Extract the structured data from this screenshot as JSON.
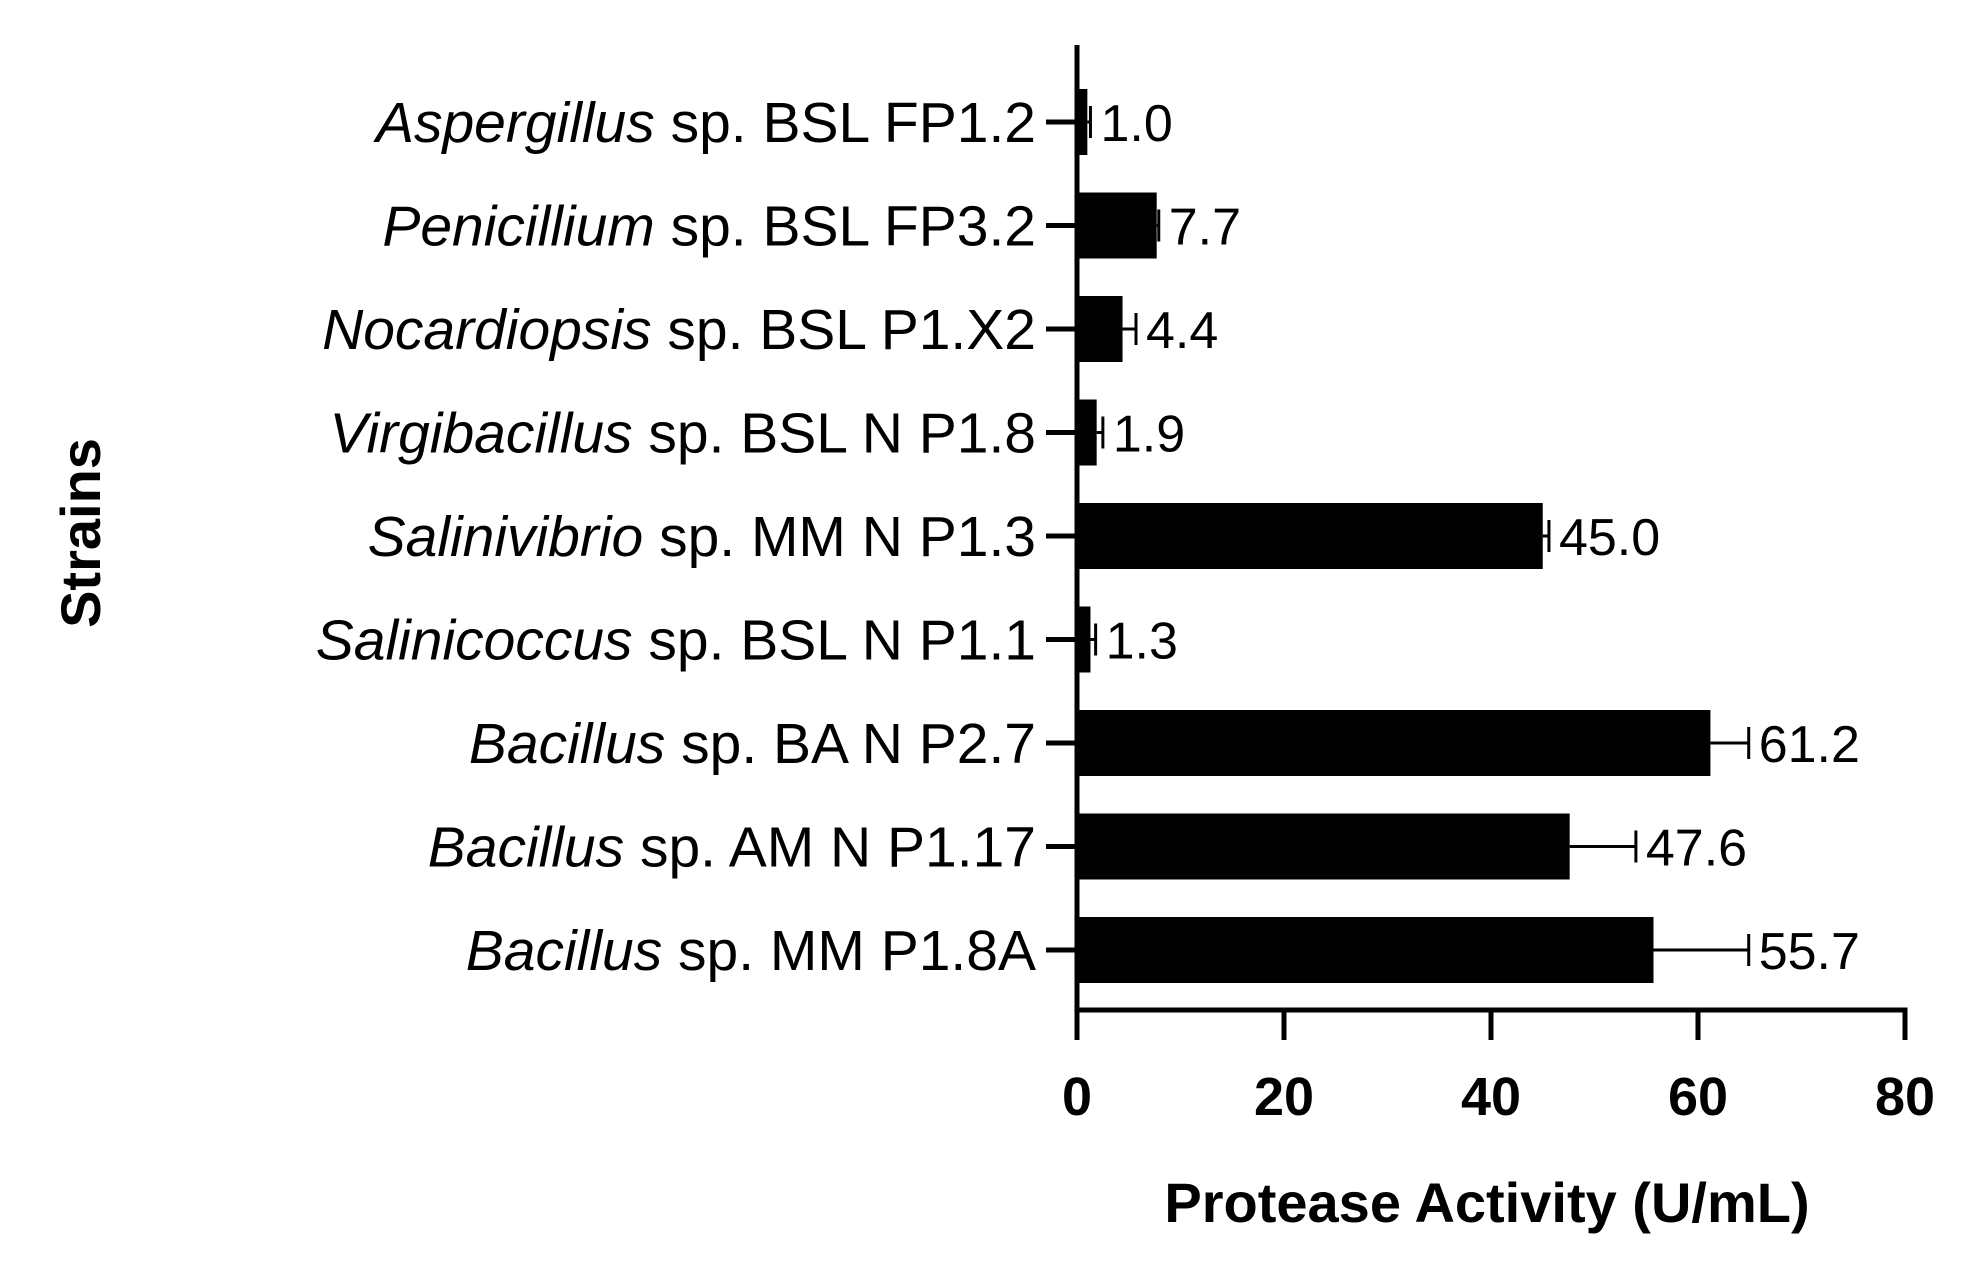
{
  "chart_data": {
    "type": "bar",
    "orientation": "horizontal",
    "title": "",
    "xlabel": "Protease Activity (U/mL)",
    "ylabel": "Strains",
    "xlim": [
      0,
      80
    ],
    "xticks": [
      0,
      20,
      40,
      60,
      80
    ],
    "grid": false,
    "categories": [
      {
        "genus": "Aspergillus",
        "rest": " sp. BSL FP1.2"
      },
      {
        "genus": "Penicillium",
        "rest": " sp. BSL FP3.2"
      },
      {
        "genus": "Nocardiopsis",
        "rest": " sp. BSL P1.X2"
      },
      {
        "genus": "Virgibacillus",
        "rest": " sp. BSL N P1.8"
      },
      {
        "genus": "Salinivibrio",
        "rest": " sp. MM N P1.3"
      },
      {
        "genus": "Salinicoccus",
        "rest": " sp. BSL N P1.1"
      },
      {
        "genus": "Bacillus",
        "rest": " sp. BA N P2.7"
      },
      {
        "genus": "Bacillus",
        "rest": " sp. AM N P1.17"
      },
      {
        "genus": "Bacillus",
        "rest": " sp. MM P1.8A"
      }
    ],
    "values": [
      1.0,
      7.7,
      4.4,
      1.9,
      45.0,
      1.3,
      61.2,
      47.6,
      55.7
    ],
    "errors": [
      0.3,
      0.2,
      1.3,
      0.6,
      0.6,
      0.5,
      3.7,
      6.4,
      9.2
    ],
    "value_labels": [
      "1.0",
      "7.7",
      "4.4",
      "1.9",
      "45.0",
      "1.3",
      "61.2",
      "47.6",
      "55.7"
    ],
    "bar_color": "#000000"
  }
}
